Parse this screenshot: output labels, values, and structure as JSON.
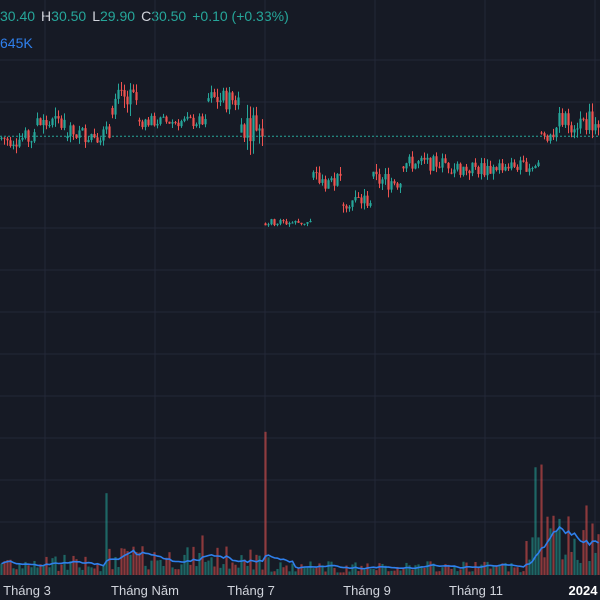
{
  "legend": {
    "o_value": "30.40",
    "h_label": "H",
    "h_value": "30.50",
    "l_label": "L",
    "l_value": "29.90",
    "c_label": "C",
    "c_value": "30.50",
    "change": "+0.10 (+0.33%)"
  },
  "volume_legend": "645K",
  "x_axis": {
    "labels": [
      "Tháng 3",
      "Tháng Năm",
      "Tháng 7",
      "Tháng 9",
      "Tháng 11",
      "2024"
    ]
  },
  "colors": {
    "background": "#161a25",
    "grid": "#232838",
    "up": "#26a69a",
    "down": "#ef5350",
    "volume_ma": "#2f80ed",
    "price_line": "#26a69a"
  },
  "chart_data": {
    "type": "candlestick",
    "price_line": 30.4,
    "price_segments": [
      {
        "from": 0,
        "to": 12,
        "level": 30.3,
        "noise": 0.35
      },
      {
        "from": 12,
        "to": 22,
        "level": 30.9,
        "noise": 0.45
      },
      {
        "from": 22,
        "to": 37,
        "level": 30.5,
        "noise": 0.35
      },
      {
        "from": 37,
        "to": 46,
        "level": 31.8,
        "noise": 0.6
      },
      {
        "from": 46,
        "to": 69,
        "level": 31.0,
        "noise": 0.25
      },
      {
        "from": 69,
        "to": 80,
        "level": 31.9,
        "noise": 0.45
      },
      {
        "from": 80,
        "to": 88,
        "level": 30.9,
        "noise": 0.7
      },
      {
        "from": 88,
        "to": 104,
        "level": 26.9,
        "noise": 0.15
      },
      {
        "from": 104,
        "to": 114,
        "level": 28.6,
        "noise": 0.4
      },
      {
        "from": 114,
        "to": 124,
        "level": 27.8,
        "noise": 0.35
      },
      {
        "from": 124,
        "to": 134,
        "level": 28.6,
        "noise": 0.4
      },
      {
        "from": 134,
        "to": 150,
        "level": 29.3,
        "noise": 0.3
      },
      {
        "from": 150,
        "to": 165,
        "level": 29.1,
        "noise": 0.35
      },
      {
        "from": 165,
        "to": 180,
        "level": 29.2,
        "noise": 0.25
      },
      {
        "from": 180,
        "to": 186,
        "level": 30.5,
        "noise": 0.3
      },
      {
        "from": 186,
        "to": 200,
        "level": 31.0,
        "noise": 0.45
      }
    ],
    "volume_segments": [
      {
        "from": 0,
        "to": 35,
        "level": 180
      },
      {
        "from": 35,
        "to": 90,
        "level": 250
      },
      {
        "from": 90,
        "to": 175,
        "level": 120
      },
      {
        "from": 175,
        "to": 200,
        "level": 520
      }
    ],
    "volume_spikes": [
      {
        "i": 35,
        "v": 1200
      },
      {
        "i": 67,
        "v": 580
      },
      {
        "i": 88,
        "v": 2100
      },
      {
        "i": 178,
        "v": 1580
      },
      {
        "i": 180,
        "v": 1620
      },
      {
        "i": 195,
        "v": 1020
      }
    ],
    "price_range": [
      20.5,
      33.5
    ],
    "volume_max": 2200
  }
}
